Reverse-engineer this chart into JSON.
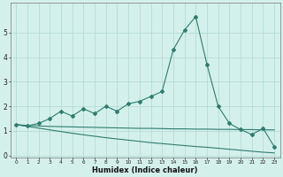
{
  "x": [
    0,
    1,
    2,
    3,
    4,
    5,
    6,
    7,
    8,
    9,
    10,
    11,
    12,
    13,
    14,
    15,
    16,
    17,
    18,
    19,
    20,
    21,
    22,
    23
  ],
  "line_jagged": [
    1.25,
    1.2,
    1.3,
    1.5,
    1.8,
    1.6,
    1.9,
    1.7,
    2.0,
    1.8,
    2.1,
    2.2,
    2.4,
    2.6,
    4.3,
    5.1,
    5.65,
    3.7,
    2.0,
    1.3,
    1.05,
    0.85,
    1.1,
    0.35
  ],
  "line_flat": [
    1.25,
    1.22,
    1.2,
    1.18,
    1.17,
    1.16,
    1.15,
    1.14,
    1.13,
    1.12,
    1.11,
    1.1,
    1.1,
    1.09,
    1.08,
    1.08,
    1.07,
    1.07,
    1.06,
    1.06,
    1.05,
    1.05,
    1.04,
    1.04
  ],
  "line_declining": [
    1.25,
    1.18,
    1.11,
    1.04,
    0.97,
    0.9,
    0.84,
    0.78,
    0.72,
    0.67,
    0.62,
    0.57,
    0.52,
    0.48,
    0.44,
    0.4,
    0.36,
    0.33,
    0.29,
    0.25,
    0.21,
    0.17,
    0.13,
    0.1
  ],
  "color": "#2e7d6e",
  "bg_color": "#d4f0eb",
  "grid_color": "#aed9d3",
  "xlabel": "Humidex (Indice chaleur)",
  "xlim": [
    0,
    23
  ],
  "ylim": [
    0,
    6
  ],
  "yticks": [
    0,
    1,
    2,
    3,
    4,
    5
  ],
  "xtick_labels": [
    "0",
    "1",
    "2",
    "3",
    "4",
    "5",
    "6",
    "7",
    "8",
    "9",
    "10",
    "11",
    "12",
    "13",
    "14",
    "15",
    "16",
    "17",
    "18",
    "19",
    "20",
    "21",
    "22",
    "23"
  ]
}
